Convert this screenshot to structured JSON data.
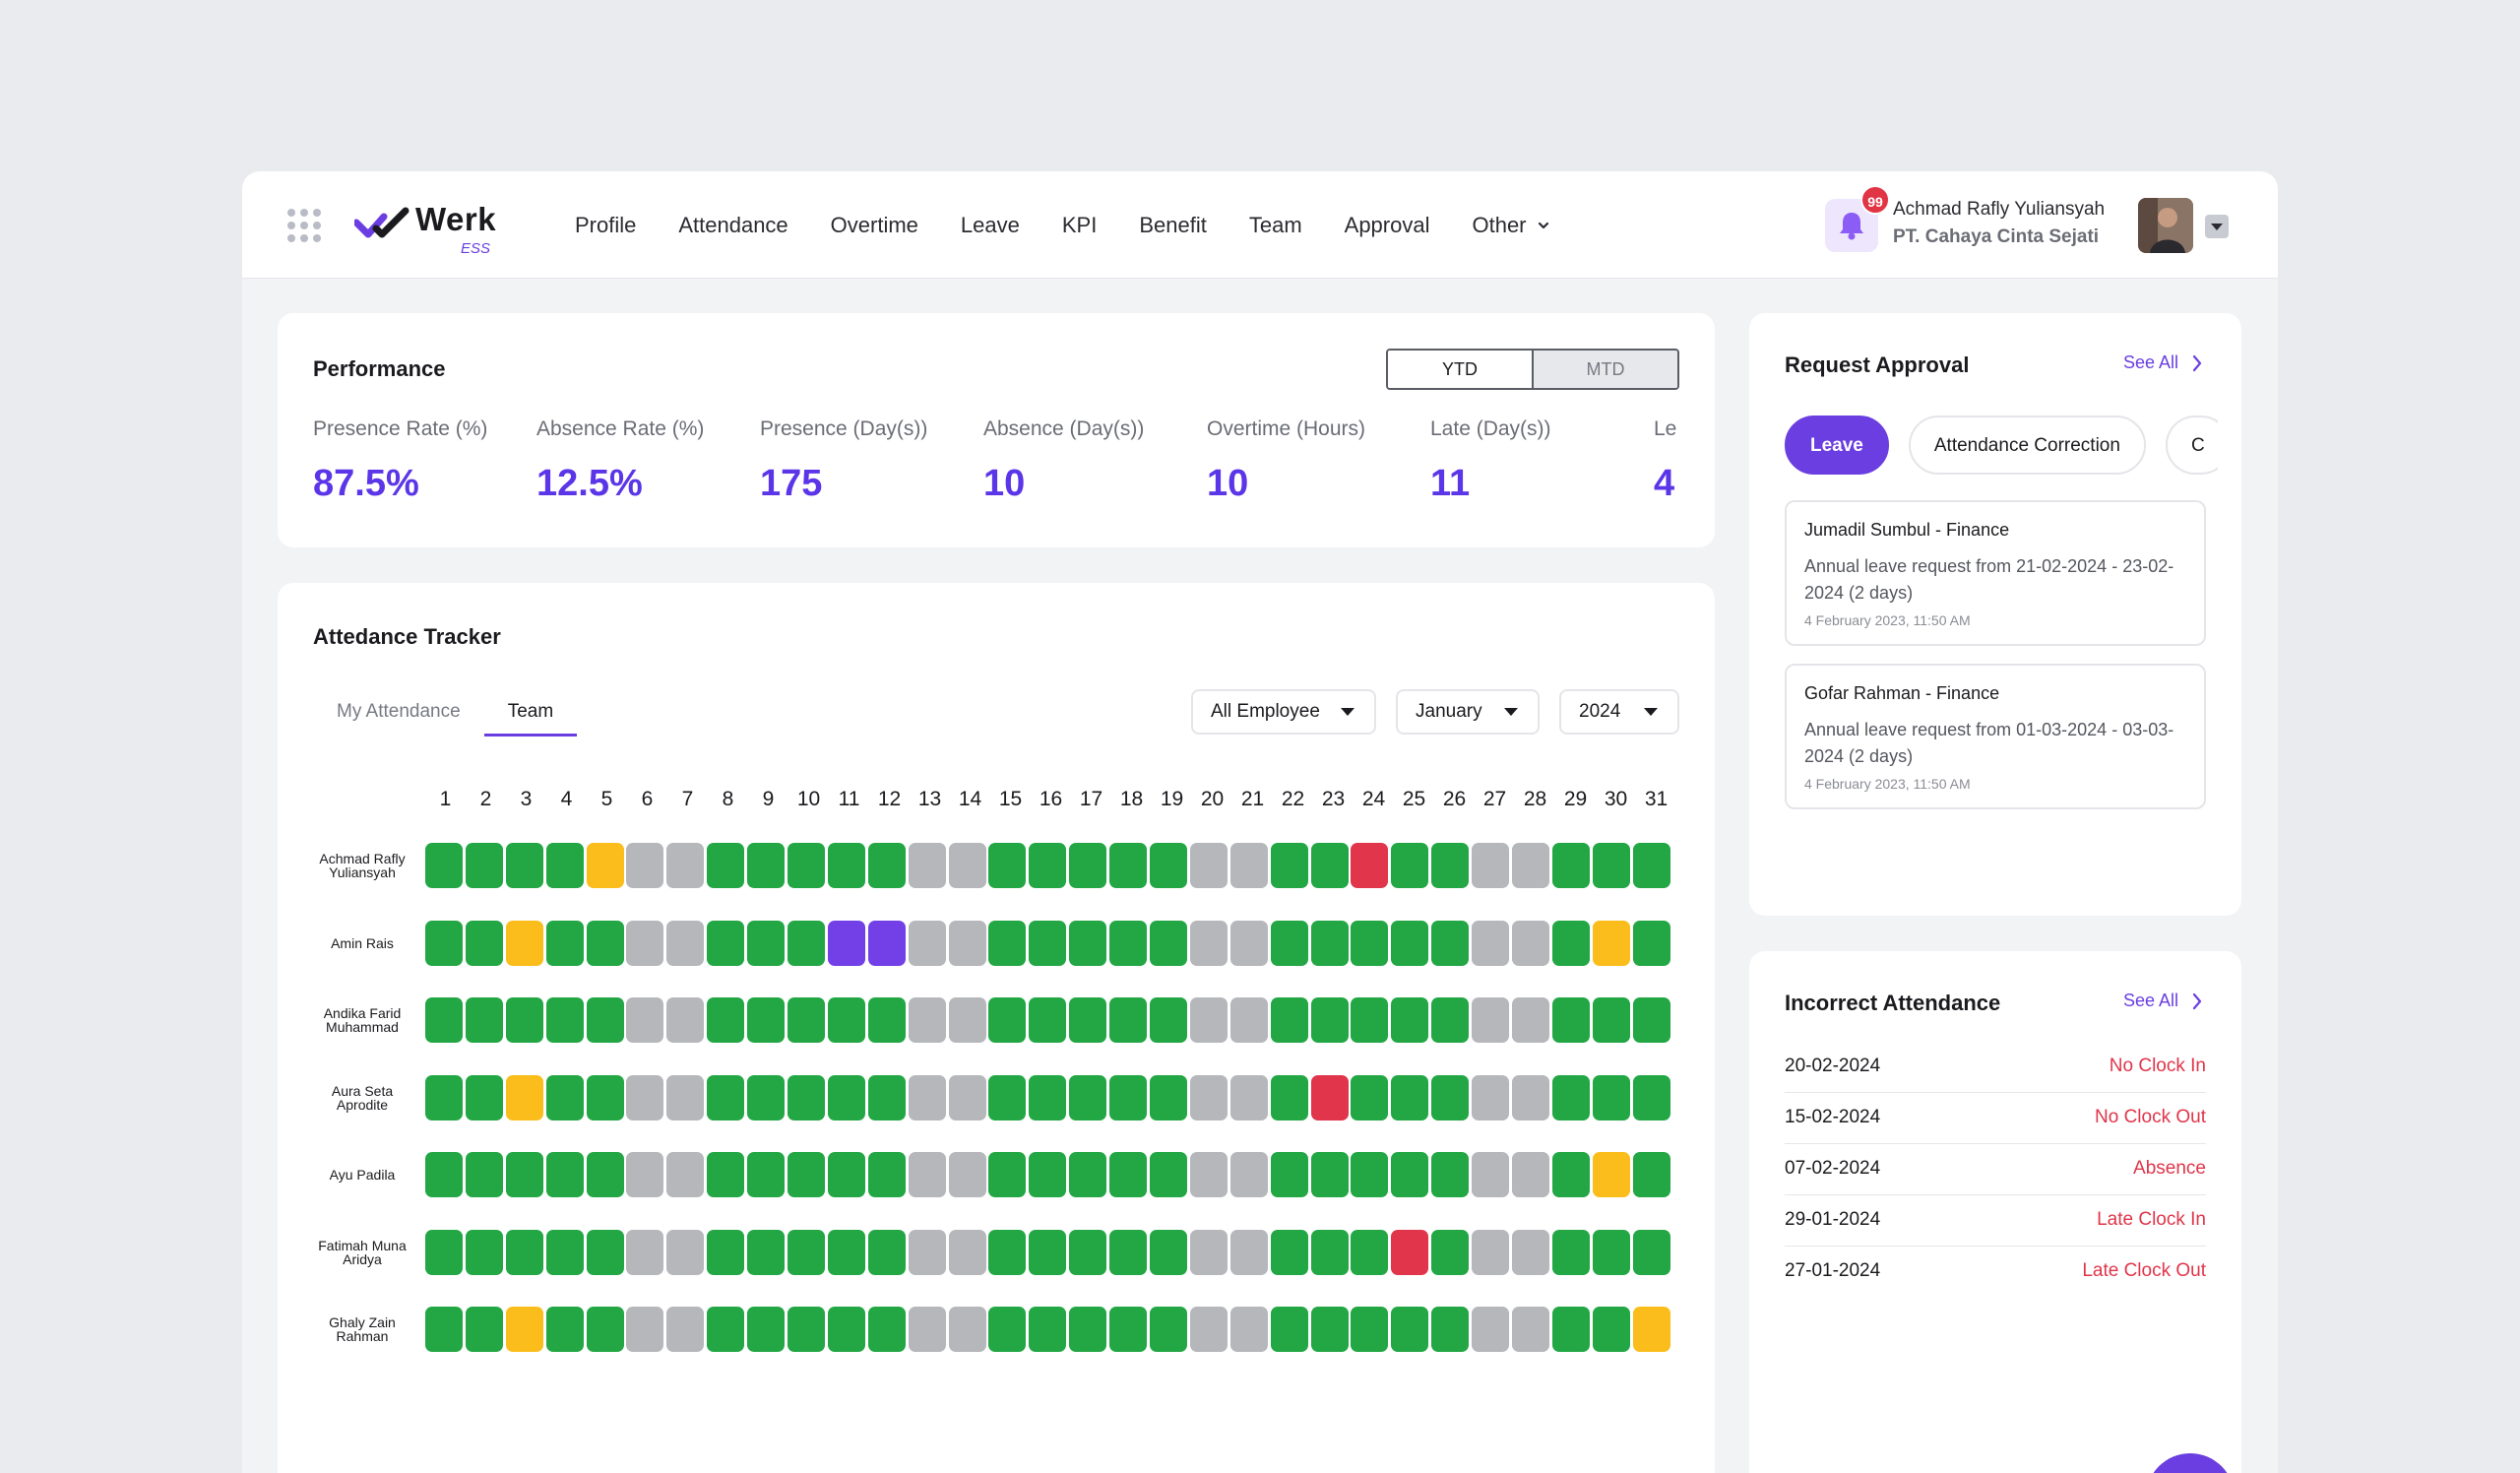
{
  "header": {
    "logo_text": "Werk",
    "logo_sub": "ESS",
    "nav": [
      {
        "label": "Profile"
      },
      {
        "label": "Attendance"
      },
      {
        "label": "Overtime"
      },
      {
        "label": "Leave"
      },
      {
        "label": "KPI"
      },
      {
        "label": "Benefit"
      },
      {
        "label": "Team"
      },
      {
        "label": "Approval"
      },
      {
        "label": "Other"
      }
    ],
    "notification_count": "99",
    "user_name": "Achmad Rafly Yuliansyah",
    "user_company": "PT. Cahaya Cinta Sejati"
  },
  "performance": {
    "title": "Performance",
    "toggle": {
      "ytd": "YTD",
      "mtd": "MTD",
      "selected": "YTD"
    },
    "metrics": [
      {
        "label": "Presence Rate (%)",
        "value": "87.5%"
      },
      {
        "label": "Absence Rate (%)",
        "value": "12.5%"
      },
      {
        "label": "Presence (Day(s))",
        "value": "175"
      },
      {
        "label": "Absence (Day(s))",
        "value": "10"
      },
      {
        "label": "Overtime (Hours)",
        "value": "10"
      },
      {
        "label": "Late (Day(s))",
        "value": "11"
      },
      {
        "label": "Le",
        "value": "4"
      }
    ]
  },
  "tracker": {
    "title": "Attedance Tracker",
    "tabs": [
      {
        "label": "My Attendance",
        "active": false
      },
      {
        "label": "Team",
        "active": true
      }
    ],
    "filters": {
      "employee": "All Employee",
      "month": "January",
      "year": "2024"
    },
    "days": [
      "1",
      "2",
      "3",
      "4",
      "5",
      "6",
      "7",
      "8",
      "9",
      "10",
      "11",
      "12",
      "13",
      "14",
      "15",
      "16",
      "17",
      "18",
      "19",
      "20",
      "21",
      "22",
      "23",
      "24",
      "25",
      "26",
      "27",
      "28",
      "29",
      "30",
      "31"
    ],
    "status_colors": {
      "G": "#22a744",
      "X": "#b6b7bb",
      "Y": "#fbbd1b",
      "R": "#e0354a",
      "P": "#7340e8"
    },
    "employees": [
      {
        "name": "Achmad Rafly Yuliansyah",
        "days": "GGGGYXXGGGGGXXGGGGGXXGGRGGXXGGG"
      },
      {
        "name": "Amin Rais",
        "days": "GGYGGXXGGGPPXXGGGGGXXGGGGGXXGYG"
      },
      {
        "name": "Andika Farid Muhammad",
        "days": "GGGGGXXGGGGGXXGGGGGXXGGGGGXXGGG"
      },
      {
        "name": "Aura Seta Aprodite",
        "days": "GGYGGXXGGGGGXXGGGGGXXGRGGGXXGGG"
      },
      {
        "name": "Ayu Padila",
        "days": "GGGGGXXGGGGGXXGGGGGXXGGGGGXXGYG"
      },
      {
        "name": "Fatimah Muna Aridya",
        "days": "GGGGGXXGGGGGXXGGGGGXXGGGRGXXGGG"
      },
      {
        "name": "Ghaly Zain Rahman",
        "days": "GGYGGXXGGGGGXXGGGGGXXGGGGGXXGGY"
      }
    ]
  },
  "request_approval": {
    "title": "Request Approval",
    "see_all": "See All",
    "chips": [
      {
        "label": "Leave",
        "active": true
      },
      {
        "label": "Attendance Correction",
        "active": false
      },
      {
        "label": "C",
        "active": false
      }
    ],
    "items": [
      {
        "who": "Jumadil Sumbul - Finance",
        "desc": "Annual leave request from 21-02-2024 - 23-02-2024 (2 days)",
        "time": "4 February 2023, 11:50 AM"
      },
      {
        "who": "Gofar Rahman - Finance",
        "desc": "Annual leave request from 01-03-2024 - 03-03-2024 (2 days)",
        "time": "4 February 2023, 11:50 AM"
      }
    ]
  },
  "incorrect_attendance": {
    "title": "Incorrect Attendance",
    "see_all": "See All",
    "rows": [
      {
        "date": "20-02-2024",
        "status": "No Clock In"
      },
      {
        "date": "15-02-2024",
        "status": "No Clock Out"
      },
      {
        "date": "07-02-2024",
        "status": "Absence"
      },
      {
        "date": "29-01-2024",
        "status": "Late Clock In"
      },
      {
        "date": "27-01-2024",
        "status": "Late Clock Out"
      }
    ]
  }
}
